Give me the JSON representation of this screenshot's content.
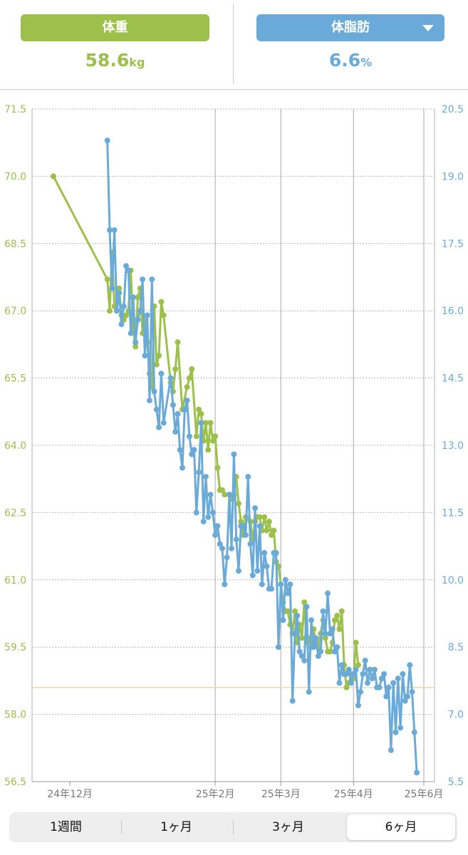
{
  "header": {
    "weight_label": "体重",
    "weight_value": "58.6",
    "weight_unit": "kg",
    "fat_label": "体脂肪",
    "fat_value": "6.6",
    "fat_unit": "%",
    "dropdown_icon": "chevron-down-icon"
  },
  "colors": {
    "weight": "#9cc04a",
    "fat": "#6aaad8",
    "goal_line": "#f2d7ad"
  },
  "periods": [
    "1週間",
    "1ヶ月",
    "3ヶ月",
    "6ヶ月"
  ],
  "active_period": "6ヶ月",
  "chart_data": {
    "type": "line",
    "x_axis": {
      "type": "date",
      "ticks": [
        "24年12月",
        "25年2月",
        "25年3月",
        "25年4月",
        "25年6月"
      ]
    },
    "y_left": {
      "name": "体重",
      "ticks": [
        "71.5",
        "70.0",
        "68.5",
        "67.0",
        "65.5",
        "64.0",
        "62.5",
        "61.0",
        "59.5",
        "58.0",
        "56.5"
      ],
      "range": [
        56.5,
        71.5
      ]
    },
    "y_right": {
      "name": "体脂肪",
      "ticks": [
        "20.5",
        "19.0",
        "17.5",
        "16.0",
        "14.5",
        "13.0",
        "11.5",
        "10.0",
        "8.5",
        "7.0",
        "5.5"
      ],
      "range": [
        5.5,
        20.5
      ]
    },
    "reference_line": {
      "axis": "left",
      "value": 58.6
    },
    "grid": true,
    "series": [
      {
        "name": "体重",
        "axis": "left",
        "points": [
          [
            "2024-12-08",
            70.0
          ],
          [
            "2024-12-31",
            67.7
          ],
          [
            "2025-01-01",
            67.0
          ],
          [
            "2025-01-02",
            68.3
          ],
          [
            "2025-01-03",
            67.1
          ],
          [
            "2025-01-04",
            67.0
          ],
          [
            "2025-01-05",
            67.5
          ],
          [
            "2025-01-06",
            66.9
          ],
          [
            "2025-01-07",
            66.8
          ],
          [
            "2025-01-08",
            66.9
          ],
          [
            "2025-01-09",
            67.0
          ],
          [
            "2025-01-10",
            67.9
          ],
          [
            "2025-01-11",
            66.6
          ],
          [
            "2025-01-12",
            66.2
          ],
          [
            "2025-01-13",
            67.3
          ],
          [
            "2025-01-14",
            67.5
          ],
          [
            "2025-01-15",
            66.5
          ],
          [
            "2025-01-16",
            66.8
          ],
          [
            "2025-01-17",
            66.3
          ],
          [
            "2025-01-18",
            65.6
          ],
          [
            "2025-01-19",
            65.3
          ],
          [
            "2025-01-20",
            67.1
          ],
          [
            "2025-01-21",
            65.8
          ],
          [
            "2025-01-22",
            66.0
          ],
          [
            "2025-01-23",
            67.2
          ],
          [
            "2025-01-24",
            66.9
          ],
          [
            "2025-01-27",
            65.4
          ],
          [
            "2025-01-28",
            65.2
          ],
          [
            "2025-01-29",
            65.7
          ],
          [
            "2025-01-30",
            66.3
          ],
          [
            "2025-02-01",
            64.8
          ],
          [
            "2025-02-03",
            65.3
          ],
          [
            "2025-02-04",
            65.5
          ],
          [
            "2025-02-05",
            65.7
          ],
          [
            "2025-02-07",
            64.2
          ],
          [
            "2025-02-08",
            64.8
          ],
          [
            "2025-02-09",
            64.7
          ],
          [
            "2025-02-10",
            64.1
          ],
          [
            "2025-02-11",
            64.5
          ],
          [
            "2025-02-12",
            63.9
          ],
          [
            "2025-02-13",
            64.5
          ],
          [
            "2025-02-14",
            64.1
          ],
          [
            "2025-02-15",
            64.2
          ],
          [
            "2025-02-16",
            63.5
          ],
          [
            "2025-02-17",
            63.0
          ],
          [
            "2025-02-18",
            63.0
          ],
          [
            "2025-02-19",
            62.9
          ],
          [
            "2025-02-21",
            62.9
          ],
          [
            "2025-02-22",
            62.8
          ],
          [
            "2025-02-23",
            62.9
          ],
          [
            "2025-02-24",
            63.3
          ],
          [
            "2025-02-25",
            62.7
          ],
          [
            "2025-02-26",
            62.3
          ],
          [
            "2025-02-27",
            62.0
          ],
          [
            "2025-02-28",
            62.4
          ],
          [
            "2025-03-02",
            62.3
          ],
          [
            "2025-03-03",
            61.9
          ],
          [
            "2025-03-04",
            62.3
          ],
          [
            "2025-03-05",
            62.4
          ],
          [
            "2025-03-06",
            62.4
          ],
          [
            "2025-03-07",
            62.1
          ],
          [
            "2025-03-08",
            62.4
          ],
          [
            "2025-03-09",
            62.1
          ],
          [
            "2025-03-10",
            62.3
          ],
          [
            "2025-03-11",
            62.0
          ],
          [
            "2025-03-12",
            62.1
          ],
          [
            "2025-03-13",
            61.4
          ],
          [
            "2025-03-14",
            61.3
          ],
          [
            "2025-03-15",
            60.9
          ],
          [
            "2025-03-16",
            60.5
          ],
          [
            "2025-03-17",
            60.3
          ],
          [
            "2025-03-18",
            60.3
          ],
          [
            "2025-03-19",
            60.0
          ],
          [
            "2025-03-20",
            59.8
          ],
          [
            "2025-03-21",
            60.3
          ],
          [
            "2025-03-22",
            59.6
          ],
          [
            "2025-03-23",
            60.0
          ],
          [
            "2025-03-24",
            59.7
          ],
          [
            "2025-03-25",
            60.5
          ],
          [
            "2025-03-26",
            59.6
          ],
          [
            "2025-03-27",
            59.7
          ],
          [
            "2025-03-28",
            59.5
          ],
          [
            "2025-03-29",
            59.9
          ],
          [
            "2025-03-30",
            59.6
          ],
          [
            "2025-03-31",
            59.5
          ],
          [
            "2025-04-01",
            59.8
          ],
          [
            "2025-04-02",
            60.1
          ],
          [
            "2025-04-03",
            59.7
          ],
          [
            "2025-04-04",
            59.4
          ],
          [
            "2025-04-05",
            59.4
          ],
          [
            "2025-04-06",
            59.6
          ],
          [
            "2025-04-07",
            60.1
          ],
          [
            "2025-04-08",
            60.2
          ],
          [
            "2025-04-09",
            59.9
          ],
          [
            "2025-04-10",
            60.3
          ],
          [
            "2025-04-11",
            59.1
          ],
          [
            "2025-04-12",
            58.6
          ],
          [
            "2025-04-13",
            58.7
          ],
          [
            "2025-04-14",
            58.9
          ],
          [
            "2025-04-15",
            58.8
          ],
          [
            "2025-04-16",
            59.6
          ],
          [
            "2025-04-17",
            59.1
          ]
        ]
      },
      {
        "name": "体脂肪",
        "axis": "right",
        "points": [
          [
            "2024-12-31",
            19.8
          ],
          [
            "2025-01-01",
            17.8
          ],
          [
            "2025-01-02",
            16.5
          ],
          [
            "2025-01-03",
            17.8
          ],
          [
            "2025-01-04",
            16.0
          ],
          [
            "2025-01-05",
            16.4
          ],
          [
            "2025-01-06",
            15.7
          ],
          [
            "2025-01-07",
            16.1
          ],
          [
            "2025-01-08",
            17.0
          ],
          [
            "2025-01-09",
            16.9
          ],
          [
            "2025-01-10",
            15.5
          ],
          [
            "2025-01-11",
            16.3
          ],
          [
            "2025-01-12",
            15.3
          ],
          [
            "2025-01-13",
            15.8
          ],
          [
            "2025-01-14",
            16.0
          ],
          [
            "2025-01-15",
            16.7
          ],
          [
            "2025-01-16",
            15.0
          ],
          [
            "2025-01-17",
            15.9
          ],
          [
            "2025-01-18",
            14.0
          ],
          [
            "2025-01-19",
            16.7
          ],
          [
            "2025-01-20",
            14.2
          ],
          [
            "2025-01-21",
            13.8
          ],
          [
            "2025-01-22",
            13.4
          ],
          [
            "2025-01-23",
            14.6
          ],
          [
            "2025-01-24",
            13.5
          ],
          [
            "2025-01-27",
            14.5
          ],
          [
            "2025-01-28",
            13.9
          ],
          [
            "2025-01-29",
            13.3
          ],
          [
            "2025-01-30",
            13.7
          ],
          [
            "2025-01-31",
            12.9
          ],
          [
            "2025-02-01",
            12.5
          ],
          [
            "2025-02-02",
            13.8
          ],
          [
            "2025-02-03",
            14.0
          ],
          [
            "2025-02-04",
            13.2
          ],
          [
            "2025-02-05",
            12.8
          ],
          [
            "2025-02-06",
            12.9
          ],
          [
            "2025-02-07",
            11.5
          ],
          [
            "2025-02-08",
            12.4
          ],
          [
            "2025-02-09",
            13.5
          ],
          [
            "2025-02-10",
            11.3
          ],
          [
            "2025-02-11",
            12.3
          ],
          [
            "2025-02-12",
            11.4
          ],
          [
            "2025-02-13",
            11.9
          ],
          [
            "2025-02-14",
            11.5
          ],
          [
            "2025-02-15",
            11.0
          ],
          [
            "2025-02-16",
            11.2
          ],
          [
            "2025-02-17",
            10.8
          ],
          [
            "2025-02-18",
            10.7
          ],
          [
            "2025-02-19",
            9.9
          ],
          [
            "2025-02-20",
            10.5
          ],
          [
            "2025-02-21",
            11.9
          ],
          [
            "2025-02-22",
            10.7
          ],
          [
            "2025-02-23",
            12.8
          ],
          [
            "2025-02-24",
            10.9
          ],
          [
            "2025-02-25",
            10.2
          ],
          [
            "2025-02-26",
            11.2
          ],
          [
            "2025-02-27",
            11.2
          ],
          [
            "2025-02-28",
            11.0
          ],
          [
            "2025-03-01",
            12.3
          ],
          [
            "2025-03-02",
            10.8
          ],
          [
            "2025-03-03",
            10.1
          ],
          [
            "2025-03-04",
            11.6
          ],
          [
            "2025-03-05",
            10.2
          ],
          [
            "2025-03-06",
            11.2
          ],
          [
            "2025-03-07",
            9.9
          ],
          [
            "2025-03-08",
            10.6
          ],
          [
            "2025-03-09",
            10.3
          ],
          [
            "2025-03-10",
            9.8
          ],
          [
            "2025-03-11",
            9.8
          ],
          [
            "2025-03-12",
            10.6
          ],
          [
            "2025-03-13",
            10.6
          ],
          [
            "2025-03-14",
            8.5
          ],
          [
            "2025-03-15",
            9.9
          ],
          [
            "2025-03-16",
            9.1
          ],
          [
            "2025-03-17",
            10.0
          ],
          [
            "2025-03-18",
            9.7
          ],
          [
            "2025-03-19",
            9.9
          ],
          [
            "2025-03-20",
            7.3
          ],
          [
            "2025-03-21",
            8.8
          ],
          [
            "2025-03-22",
            9.2
          ],
          [
            "2025-03-23",
            8.4
          ],
          [
            "2025-03-24",
            8.3
          ],
          [
            "2025-03-25",
            8.2
          ],
          [
            "2025-03-26",
            9.4
          ],
          [
            "2025-03-27",
            7.5
          ],
          [
            "2025-03-28",
            9.1
          ],
          [
            "2025-03-29",
            8.5
          ],
          [
            "2025-03-30",
            8.7
          ],
          [
            "2025-03-31",
            8.3
          ],
          [
            "2025-04-01",
            8.4
          ],
          [
            "2025-04-02",
            9.3
          ],
          [
            "2025-04-03",
            8.8
          ],
          [
            "2025-04-04",
            9.7
          ],
          [
            "2025-04-05",
            8.8
          ],
          [
            "2025-04-06",
            8.9
          ],
          [
            "2025-04-07",
            8.4
          ],
          [
            "2025-04-08",
            8.5
          ],
          [
            "2025-04-09",
            7.7
          ],
          [
            "2025-04-10",
            8.1
          ],
          [
            "2025-04-11",
            7.9
          ],
          [
            "2025-04-12",
            7.9
          ],
          [
            "2025-04-13",
            8.0
          ],
          [
            "2025-04-14",
            7.7
          ],
          [
            "2025-04-15",
            7.9
          ],
          [
            "2025-04-16",
            8.0
          ],
          [
            "2025-04-17",
            7.2
          ],
          [
            "2025-04-18",
            7.5
          ],
          [
            "2025-04-19",
            7.9
          ],
          [
            "2025-04-20",
            8.2
          ],
          [
            "2025-04-21",
            7.7
          ],
          [
            "2025-04-22",
            8.0
          ],
          [
            "2025-04-23",
            7.8
          ],
          [
            "2025-04-24",
            8.0
          ],
          [
            "2025-04-25",
            7.6
          ],
          [
            "2025-04-26",
            7.6
          ],
          [
            "2025-04-27",
            7.8
          ],
          [
            "2025-04-28",
            7.9
          ],
          [
            "2025-04-29",
            7.4
          ],
          [
            "2025-04-30",
            7.6
          ],
          [
            "2025-05-01",
            6.2
          ],
          [
            "2025-05-02",
            7.7
          ],
          [
            "2025-05-03",
            6.6
          ],
          [
            "2025-05-04",
            7.8
          ],
          [
            "2025-05-05",
            6.7
          ],
          [
            "2025-05-06",
            7.9
          ],
          [
            "2025-05-07",
            7.3
          ],
          [
            "2025-05-08",
            7.4
          ],
          [
            "2025-05-09",
            8.1
          ],
          [
            "2025-05-10",
            7.5
          ],
          [
            "2025-05-11",
            6.6
          ],
          [
            "2025-05-12",
            5.7
          ]
        ]
      }
    ]
  }
}
